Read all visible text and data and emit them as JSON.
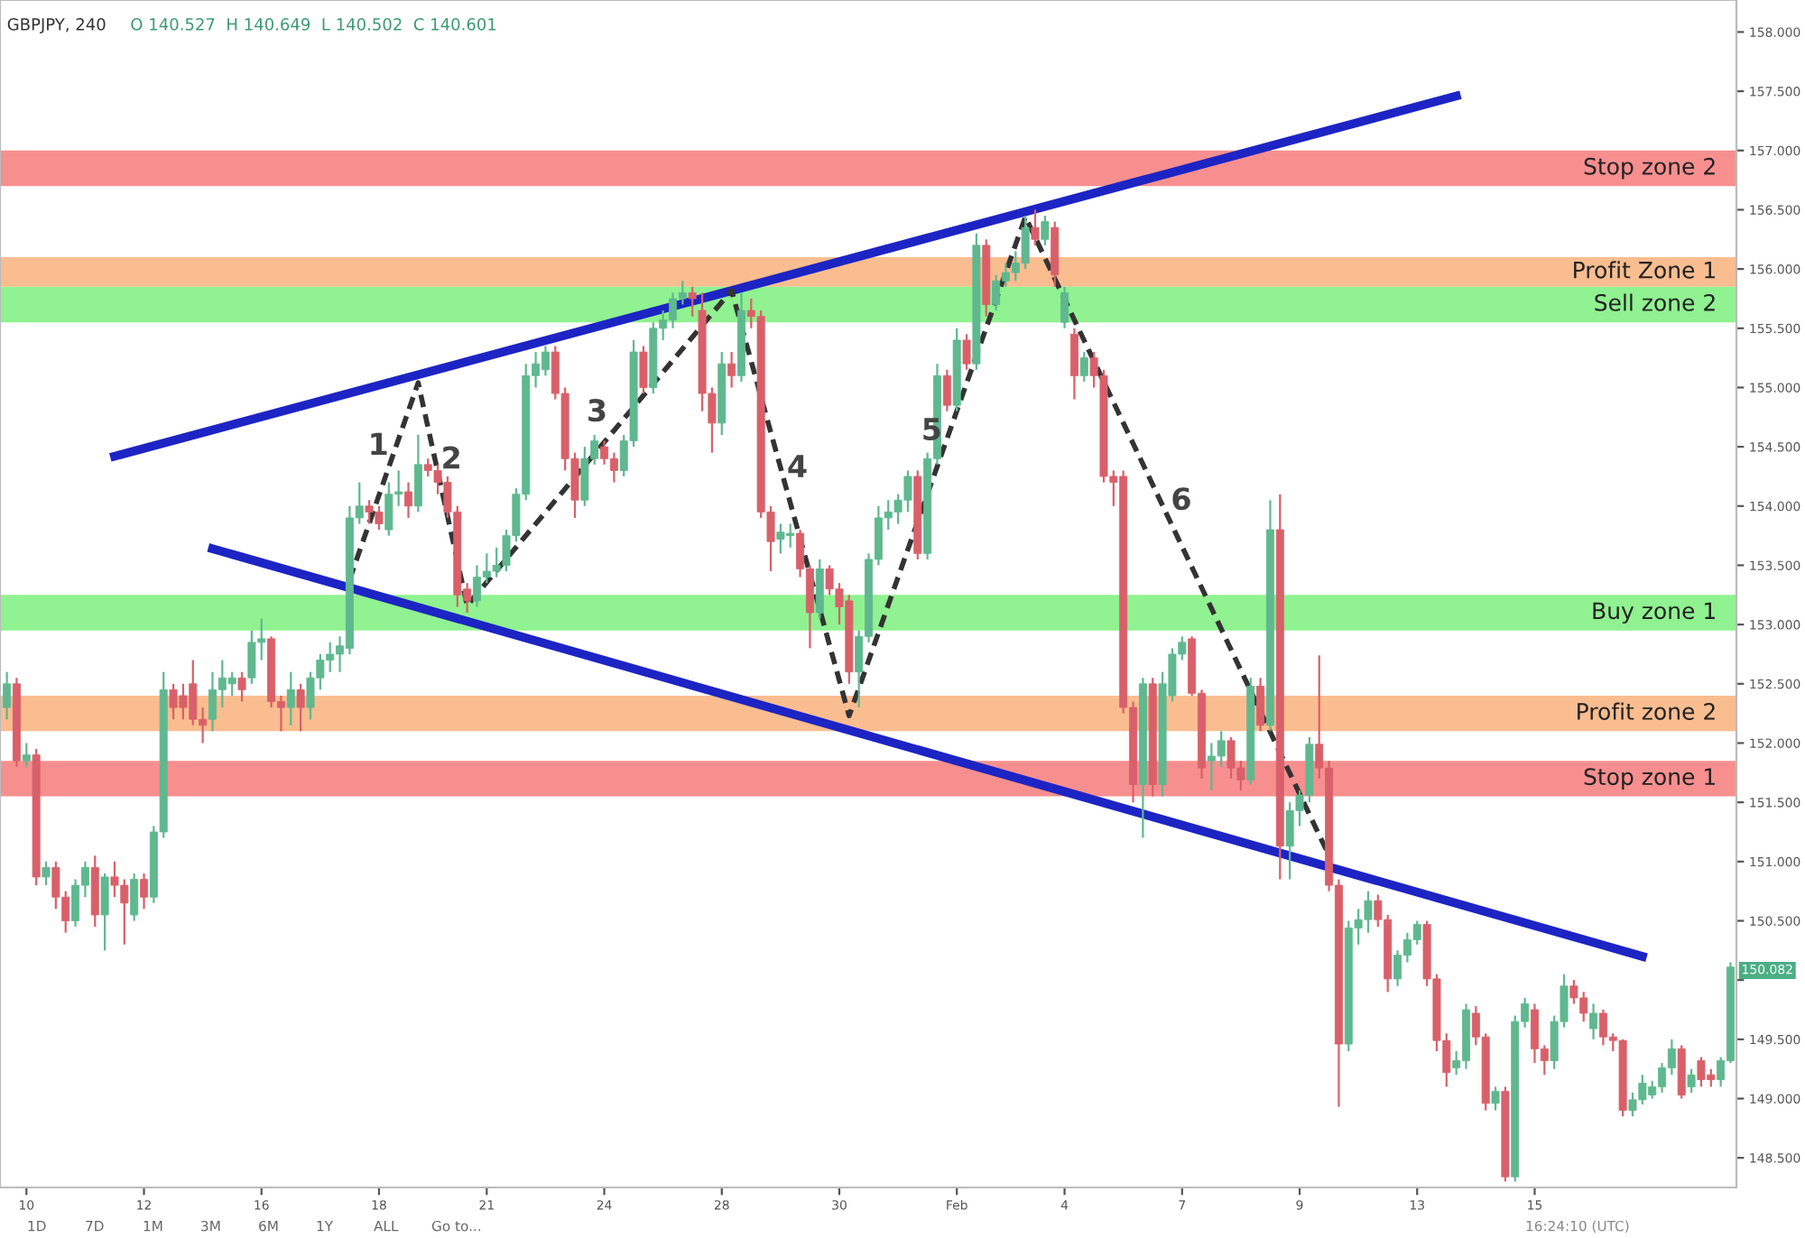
{
  "chart_data": {
    "type": "candlestick",
    "title": "GBPJPY, 240",
    "subtitle": "O 140.527  H 140.649  L 140.502  C 140.601",
    "categories": [
      null,
      null,
      "10",
      null,
      null,
      null,
      null,
      null,
      null,
      null,
      null,
      null,
      null,
      null,
      "12",
      null,
      null,
      null,
      null,
      null,
      null,
      null,
      null,
      null,
      null,
      null,
      "16",
      null,
      null,
      null,
      null,
      null,
      null,
      null,
      null,
      null,
      null,
      null,
      "18",
      null,
      null,
      null,
      null,
      null,
      null,
      null,
      null,
      null,
      null,
      "21",
      null,
      null,
      null,
      null,
      null,
      null,
      null,
      null,
      null,
      null,
      null,
      "24",
      null,
      null,
      null,
      null,
      null,
      null,
      null,
      null,
      null,
      null,
      null,
      "28",
      null,
      null,
      null,
      null,
      null,
      null,
      null,
      null,
      null,
      null,
      null,
      "30",
      null,
      null,
      null,
      null,
      null,
      null,
      null,
      null,
      null,
      null,
      null,
      "Feb",
      null,
      null,
      null,
      null,
      null,
      null,
      null,
      null,
      null,
      null,
      "4",
      null,
      null,
      null,
      null,
      null,
      null,
      null,
      null,
      null,
      null,
      null,
      "7",
      null,
      null,
      null,
      null,
      null,
      null,
      null,
      null,
      null,
      null,
      null,
      "9",
      null,
      null,
      null,
      null,
      null,
      null,
      null,
      null,
      null,
      null,
      null,
      "13",
      null,
      null,
      null,
      null,
      null,
      null,
      null,
      null,
      null,
      null,
      null,
      "15",
      null,
      null,
      null,
      null,
      null,
      null,
      null,
      null,
      null,
      null,
      null,
      null,
      null,
      null,
      null,
      null,
      null,
      null,
      null,
      null
    ],
    "ohlc": [
      [
        152.3,
        152.6,
        152.2,
        152.5
      ],
      [
        152.5,
        152.55,
        151.8,
        151.85
      ],
      [
        151.85,
        152.0,
        151.8,
        151.9
      ],
      [
        151.9,
        151.95,
        150.8,
        150.87
      ],
      [
        150.87,
        151.0,
        150.8,
        150.95
      ],
      [
        150.95,
        151.0,
        150.6,
        150.7
      ],
      [
        150.7,
        150.75,
        150.4,
        150.5
      ],
      [
        150.5,
        150.85,
        150.45,
        150.8
      ],
      [
        150.8,
        151.0,
        150.7,
        150.95
      ],
      [
        150.95,
        151.05,
        150.45,
        150.55
      ],
      [
        150.55,
        150.9,
        150.25,
        150.87
      ],
      [
        150.87,
        151.0,
        150.7,
        150.8
      ],
      [
        150.8,
        150.85,
        150.3,
        150.65
      ],
      [
        150.55,
        150.9,
        150.5,
        150.85
      ],
      [
        150.85,
        150.9,
        150.6,
        150.7
      ],
      [
        150.7,
        151.3,
        150.65,
        151.25
      ],
      [
        151.25,
        152.6,
        151.2,
        152.45
      ],
      [
        152.45,
        152.5,
        152.2,
        152.3
      ],
      [
        152.4,
        152.5,
        152.2,
        152.3
      ],
      [
        152.5,
        152.7,
        152.15,
        152.2
      ],
      [
        152.2,
        152.3,
        152.0,
        152.15
      ],
      [
        152.2,
        152.6,
        152.1,
        152.45
      ],
      [
        152.45,
        152.7,
        152.3,
        152.55
      ],
      [
        152.5,
        152.6,
        152.4,
        152.55
      ],
      [
        152.55,
        152.6,
        152.35,
        152.45
      ],
      [
        152.55,
        152.95,
        152.5,
        152.85
      ],
      [
        152.85,
        153.05,
        152.7,
        152.88
      ],
      [
        152.88,
        152.9,
        152.3,
        152.35
      ],
      [
        152.35,
        152.4,
        152.1,
        152.3
      ],
      [
        152.3,
        152.6,
        152.15,
        152.45
      ],
      [
        152.45,
        152.5,
        152.1,
        152.3
      ],
      [
        152.3,
        152.6,
        152.2,
        152.55
      ],
      [
        152.55,
        152.75,
        152.45,
        152.7
      ],
      [
        152.7,
        152.85,
        152.6,
        152.75
      ],
      [
        152.75,
        152.9,
        152.6,
        152.82
      ],
      [
        152.8,
        154.0,
        152.75,
        153.9
      ],
      [
        153.9,
        154.2,
        153.85,
        154.0
      ],
      [
        154.0,
        154.05,
        153.85,
        153.95
      ],
      [
        153.95,
        154.0,
        153.8,
        153.85
      ],
      [
        153.8,
        154.2,
        153.75,
        154.1
      ],
      [
        154.1,
        154.3,
        154.0,
        154.12
      ],
      [
        154.12,
        154.2,
        153.9,
        154.0
      ],
      [
        154.0,
        154.6,
        153.95,
        154.35
      ],
      [
        154.35,
        154.4,
        154.25,
        154.3
      ],
      [
        154.3,
        154.35,
        154.1,
        154.2
      ],
      [
        154.2,
        154.25,
        153.9,
        153.95
      ],
      [
        153.95,
        154.0,
        153.15,
        153.25
      ],
      [
        153.3,
        153.35,
        153.1,
        153.2
      ],
      [
        153.2,
        153.5,
        153.15,
        153.4
      ],
      [
        153.4,
        153.6,
        153.35,
        153.45
      ],
      [
        153.45,
        153.65,
        153.4,
        153.5
      ],
      [
        153.5,
        153.8,
        153.45,
        153.75
      ],
      [
        153.75,
        154.15,
        153.7,
        154.1
      ],
      [
        154.1,
        155.2,
        154.05,
        155.1
      ],
      [
        155.1,
        155.3,
        155.0,
        155.2
      ],
      [
        155.15,
        155.35,
        155.1,
        155.3
      ],
      [
        155.3,
        155.35,
        154.9,
        154.95
      ],
      [
        154.95,
        155.0,
        154.3,
        154.4
      ],
      [
        154.4,
        154.45,
        153.9,
        154.05
      ],
      [
        154.05,
        154.5,
        154.0,
        154.4
      ],
      [
        154.4,
        154.6,
        154.35,
        154.55
      ],
      [
        154.5,
        154.55,
        154.35,
        154.4
      ],
      [
        154.4,
        154.45,
        154.2,
        154.3
      ],
      [
        154.3,
        154.6,
        154.25,
        154.55
      ],
      [
        154.55,
        155.4,
        154.5,
        155.3
      ],
      [
        155.3,
        155.35,
        154.95,
        155.0
      ],
      [
        155.0,
        155.55,
        154.95,
        155.5
      ],
      [
        155.5,
        155.65,
        155.4,
        155.57
      ],
      [
        155.57,
        155.8,
        155.5,
        155.75
      ],
      [
        155.75,
        155.9,
        155.7,
        155.8
      ],
      [
        155.8,
        155.85,
        155.6,
        155.75
      ],
      [
        155.65,
        155.8,
        154.8,
        154.95
      ],
      [
        154.95,
        155.0,
        154.45,
        154.7
      ],
      [
        154.7,
        155.3,
        154.6,
        155.2
      ],
      [
        155.2,
        155.3,
        155.0,
        155.1
      ],
      [
        155.1,
        155.8,
        155.05,
        155.65
      ],
      [
        155.65,
        155.75,
        155.5,
        155.6
      ],
      [
        155.6,
        155.65,
        153.9,
        153.95
      ],
      [
        153.95,
        154.0,
        153.45,
        153.7
      ],
      [
        153.72,
        153.85,
        153.6,
        153.78
      ],
      [
        153.75,
        153.85,
        153.65,
        153.77
      ],
      [
        153.77,
        153.8,
        153.4,
        153.47
      ],
      [
        153.47,
        153.5,
        152.8,
        153.1
      ],
      [
        153.1,
        153.55,
        153.05,
        153.47
      ],
      [
        153.47,
        153.5,
        153.25,
        153.3
      ],
      [
        153.3,
        153.35,
        153.0,
        153.15
      ],
      [
        153.2,
        153.25,
        152.5,
        152.6
      ],
      [
        152.6,
        152.95,
        152.3,
        152.9
      ],
      [
        152.9,
        153.6,
        152.85,
        153.55
      ],
      [
        153.55,
        154.0,
        153.5,
        153.9
      ],
      [
        153.9,
        154.05,
        153.8,
        153.95
      ],
      [
        153.95,
        154.1,
        153.85,
        154.05
      ],
      [
        154.05,
        154.3,
        153.95,
        154.25
      ],
      [
        154.25,
        154.3,
        153.55,
        153.6
      ],
      [
        153.6,
        154.45,
        153.55,
        154.4
      ],
      [
        154.4,
        155.2,
        154.35,
        155.1
      ],
      [
        155.1,
        155.15,
        154.8,
        154.85
      ],
      [
        154.85,
        155.5,
        154.8,
        155.4
      ],
      [
        155.4,
        155.45,
        155.15,
        155.2
      ],
      [
        155.2,
        156.3,
        155.15,
        156.2
      ],
      [
        156.2,
        156.25,
        155.6,
        155.7
      ],
      [
        155.7,
        155.95,
        155.65,
        155.9
      ],
      [
        155.9,
        156.05,
        155.85,
        155.97
      ],
      [
        155.97,
        156.15,
        155.9,
        156.05
      ],
      [
        156.05,
        156.45,
        156.0,
        156.35
      ],
      [
        156.35,
        156.5,
        156.2,
        156.25
      ],
      [
        156.25,
        156.45,
        156.2,
        156.4
      ],
      [
        156.35,
        156.4,
        155.85,
        155.95
      ],
      [
        155.55,
        155.85,
        155.5,
        155.8
      ],
      [
        155.45,
        155.5,
        154.9,
        155.1
      ],
      [
        155.1,
        155.3,
        155.05,
        155.25
      ],
      [
        155.25,
        155.3,
        155.0,
        155.1
      ],
      [
        155.1,
        155.15,
        154.2,
        154.25
      ],
      [
        154.25,
        154.3,
        154.0,
        154.2
      ],
      [
        154.25,
        154.3,
        152.25,
        152.3
      ],
      [
        152.3,
        152.35,
        151.5,
        151.65
      ],
      [
        151.65,
        152.55,
        151.2,
        152.5
      ],
      [
        152.5,
        152.55,
        151.55,
        151.65
      ],
      [
        151.65,
        152.6,
        151.55,
        152.5
      ],
      [
        152.4,
        152.8,
        152.35,
        152.75
      ],
      [
        152.75,
        152.9,
        152.7,
        152.85
      ],
      [
        152.88,
        152.9,
        152.4,
        152.42
      ],
      [
        152.42,
        152.45,
        151.7,
        151.79
      ],
      [
        151.85,
        152.0,
        151.6,
        151.89
      ],
      [
        151.89,
        152.1,
        151.8,
        152.02
      ],
      [
        152.02,
        152.05,
        151.7,
        151.79
      ],
      [
        151.79,
        151.85,
        151.6,
        151.69
      ],
      [
        151.69,
        152.55,
        151.65,
        152.48
      ],
      [
        152.48,
        152.55,
        152.1,
        152.15
      ],
      [
        152.15,
        154.05,
        152.1,
        153.8
      ],
      [
        153.8,
        154.1,
        150.85,
        151.13
      ],
      [
        151.13,
        151.5,
        150.85,
        151.43
      ],
      [
        151.43,
        151.6,
        151.3,
        151.56
      ],
      [
        151.56,
        152.05,
        151.5,
        151.99
      ],
      [
        151.99,
        152.74,
        151.7,
        151.79
      ],
      [
        151.79,
        151.85,
        150.75,
        150.8
      ],
      [
        150.8,
        150.85,
        148.93,
        149.46
      ],
      [
        149.46,
        150.5,
        149.4,
        150.44
      ],
      [
        150.44,
        150.6,
        150.3,
        150.51
      ],
      [
        150.51,
        150.75,
        150.4,
        150.67
      ],
      [
        150.67,
        150.72,
        150.45,
        150.51
      ],
      [
        150.51,
        150.55,
        149.9,
        150.01
      ],
      [
        150.01,
        150.25,
        149.95,
        150.21
      ],
      [
        150.21,
        150.4,
        150.15,
        150.34
      ],
      [
        150.34,
        150.5,
        150.3,
        150.47
      ],
      [
        150.47,
        150.5,
        149.95,
        150.01
      ],
      [
        150.01,
        150.05,
        149.4,
        149.49
      ],
      [
        149.49,
        149.55,
        149.1,
        149.22
      ],
      [
        149.26,
        149.4,
        149.2,
        149.32
      ],
      [
        149.32,
        149.8,
        149.25,
        149.75
      ],
      [
        149.72,
        149.78,
        149.45,
        149.52
      ],
      [
        149.52,
        149.55,
        148.9,
        148.96
      ],
      [
        148.96,
        149.1,
        148.9,
        149.06
      ],
      [
        149.06,
        149.1,
        148.3,
        148.34
      ],
      [
        148.34,
        149.7,
        148.3,
        149.65
      ],
      [
        149.65,
        149.85,
        149.6,
        149.8
      ],
      [
        149.75,
        149.8,
        149.3,
        149.42
      ],
      [
        149.42,
        149.45,
        149.2,
        149.32
      ],
      [
        149.32,
        149.7,
        149.25,
        149.65
      ],
      [
        149.65,
        150.05,
        149.6,
        149.95
      ],
      [
        149.95,
        150.0,
        149.8,
        149.85
      ],
      [
        149.85,
        149.9,
        149.65,
        149.72
      ],
      [
        149.59,
        149.8,
        149.5,
        149.72
      ],
      [
        149.72,
        149.75,
        149.45,
        149.52
      ],
      [
        149.52,
        149.55,
        149.4,
        149.49
      ],
      [
        149.49,
        149.5,
        148.85,
        148.9
      ],
      [
        148.9,
        149.05,
        148.85,
        148.99
      ],
      [
        148.99,
        149.2,
        148.95,
        149.13
      ],
      [
        149.03,
        149.15,
        149.0,
        149.1
      ],
      [
        149.1,
        149.3,
        149.05,
        149.26
      ],
      [
        149.26,
        149.5,
        149.2,
        149.42
      ],
      [
        149.42,
        149.45,
        149.0,
        149.03
      ],
      [
        149.1,
        149.25,
        149.05,
        149.2
      ],
      [
        149.32,
        149.35,
        149.1,
        149.16
      ],
      [
        149.2,
        149.25,
        149.1,
        149.16
      ],
      [
        149.16,
        149.35,
        149.1,
        149.32
      ],
      [
        149.32,
        150.15,
        149.3,
        150.11
      ]
    ],
    "series": [
      {
        "type": "line",
        "color": "#1d24c4",
        "line_style": "solid",
        "values": [
          null,
          null,
          null,
          null,
          null,
          null,
          null,
          null,
          null,
          null,
          null,
          154.42,
          null,
          null,
          null,
          null,
          null,
          null,
          null,
          null,
          null,
          null,
          null,
          null,
          null,
          null,
          null,
          null,
          null,
          null,
          null,
          null,
          null,
          null,
          null,
          null,
          null,
          null,
          null,
          null,
          null,
          null,
          null,
          null,
          null,
          null,
          null,
          null,
          null,
          null,
          null,
          null,
          null,
          null,
          null,
          null,
          null,
          null,
          null,
          null,
          null,
          null,
          null,
          null,
          null,
          null,
          null,
          null,
          null,
          null,
          null,
          null,
          null,
          null,
          null,
          null,
          null,
          null,
          null,
          null,
          null,
          null,
          null,
          null,
          null,
          null,
          null,
          null,
          null,
          null,
          null,
          null,
          null,
          null,
          null,
          null,
          null,
          null,
          null,
          null,
          null,
          null,
          null,
          null,
          null,
          null,
          null,
          null,
          null,
          null,
          null,
          null,
          null,
          null,
          null,
          null,
          null,
          null,
          null,
          null,
          null,
          null,
          null,
          null,
          null,
          null,
          null,
          null,
          null,
          null,
          null,
          null,
          null,
          null,
          null,
          null,
          null,
          null,
          null,
          null,
          null,
          null,
          null,
          null,
          null,
          null,
          null,
          null,
          157.46,
          null,
          null,
          null,
          null,
          null,
          null,
          null,
          null,
          null,
          null,
          null,
          null,
          null,
          null,
          null,
          null,
          null,
          null,
          null,
          null,
          null,
          null,
          null,
          null,
          null,
          null,
          null,
          null
        ]
      },
      {
        "type": "line",
        "color": "#1d24c4",
        "line_style": "solid",
        "values": [
          null,
          null,
          null,
          null,
          null,
          null,
          null,
          null,
          null,
          null,
          null,
          null,
          null,
          null,
          null,
          null,
          null,
          null,
          null,
          null,
          null,
          153.64,
          null,
          null,
          null,
          null,
          null,
          null,
          null,
          null,
          null,
          null,
          null,
          null,
          null,
          null,
          null,
          null,
          null,
          null,
          null,
          null,
          null,
          null,
          null,
          null,
          null,
          null,
          null,
          null,
          null,
          null,
          null,
          null,
          null,
          null,
          null,
          null,
          null,
          null,
          null,
          null,
          null,
          null,
          null,
          null,
          null,
          null,
          null,
          null,
          null,
          null,
          null,
          null,
          null,
          null,
          null,
          null,
          null,
          null,
          null,
          null,
          null,
          null,
          null,
          null,
          null,
          null,
          null,
          null,
          null,
          null,
          null,
          null,
          null,
          null,
          null,
          null,
          null,
          null,
          null,
          null,
          null,
          null,
          null,
          null,
          null,
          null,
          null,
          null,
          null,
          null,
          null,
          null,
          null,
          null,
          null,
          null,
          null,
          null,
          null,
          null,
          null,
          null,
          null,
          null,
          null,
          null,
          null,
          null,
          null,
          null,
          null,
          null,
          null,
          null,
          null,
          null,
          null,
          null,
          null,
          null,
          null,
          null,
          null,
          null,
          null,
          null,
          null,
          null,
          null,
          null,
          null,
          null,
          null,
          null,
          null,
          null,
          null,
          null,
          null,
          null,
          null,
          null,
          null,
          null,
          null,
          150.2,
          null,
          null,
          null,
          null,
          null,
          null,
          null,
          null,
          null
        ]
      },
      {
        "type": "line",
        "color": "#333333",
        "line_style": "dashed",
        "values": [
          null,
          null,
          null,
          null,
          null,
          null,
          null,
          null,
          null,
          null,
          null,
          null,
          null,
          null,
          null,
          null,
          null,
          null,
          null,
          null,
          null,
          null,
          null,
          null,
          null,
          null,
          null,
          null,
          null,
          null,
          null,
          null,
          null,
          null,
          null,
          153.38,
          null,
          null,
          null,
          null,
          null,
          null,
          155.04,
          null,
          null,
          null,
          null,
          153.16,
          null,
          null,
          null,
          null,
          null,
          null,
          null,
          null,
          null,
          null,
          null,
          null,
          null,
          null,
          null,
          null,
          null,
          null,
          null,
          null,
          null,
          null,
          null,
          null,
          null,
          null,
          155.82,
          null,
          null,
          null,
          null,
          null,
          null,
          null,
          null,
          null,
          null,
          null,
          152.23,
          null,
          null,
          null,
          null,
          null,
          null,
          null,
          null,
          null,
          null,
          null,
          null,
          null,
          null,
          null,
          null,
          null,
          156.44,
          null,
          null,
          null,
          null,
          null,
          null,
          null,
          null,
          null,
          null,
          null,
          null,
          null,
          null,
          null,
          null,
          null,
          null,
          null,
          null,
          null,
          null,
          null,
          null,
          null,
          null,
          null,
          null,
          null,
          null,
          151.05,
          null,
          null,
          null,
          null,
          null,
          null,
          null,
          null,
          null,
          null,
          null,
          null,
          null,
          null,
          null,
          null,
          null,
          null,
          null,
          null,
          null,
          null,
          null,
          null,
          null,
          null,
          null,
          null,
          null,
          null,
          null,
          null,
          null,
          null,
          null,
          null,
          null,
          null,
          null,
          null,
          null
        ]
      }
    ],
    "bands": [
      {
        "axis": "y",
        "from": 156.7,
        "to": 157.0,
        "label": "Stop zone 2",
        "color": "#f77b7b"
      },
      {
        "axis": "y",
        "from": 155.85,
        "to": 156.1,
        "label": "Profit Zone 1",
        "color": "#f9b27d"
      },
      {
        "axis": "y",
        "from": 155.55,
        "to": 155.85,
        "label": "Sell zone 2",
        "color": "#7cf07c"
      },
      {
        "axis": "y",
        "from": 152.95,
        "to": 153.25,
        "label": "Buy zone 1",
        "color": "#7cf07c"
      },
      {
        "axis": "y",
        "from": 152.1,
        "to": 152.4,
        "label": "Profit zone 2",
        "color": "#f9b27d"
      },
      {
        "axis": "y",
        "from": 151.55,
        "to": 151.85,
        "label": "Stop zone 1",
        "color": "#f77b7b"
      }
    ],
    "annotations": [
      "1",
      "2",
      "3",
      "4",
      "5",
      "6",
      {
        "text": "150.082",
        "y": 150.082
      },
      "1D",
      "7D",
      "1M",
      "3M",
      "6M",
      "1Y",
      "ALL",
      "Go to...",
      "16:24:10 (UTC)"
    ],
    "ylim": [
      148.25,
      158.27
    ],
    "yticks": [
      {
        "value": 148.5,
        "label": "148.500"
      },
      {
        "value": 149,
        "label": "149.000"
      },
      {
        "value": 149.5,
        "label": "149.500"
      },
      {
        "value": 150,
        "label": null
      },
      {
        "value": 150.5,
        "label": "150.500"
      },
      {
        "value": 151,
        "label": "151.000"
      },
      {
        "value": 151.5,
        "label": "151.500"
      },
      {
        "value": 152,
        "label": "152.000"
      },
      {
        "value": 152.5,
        "label": "152.500"
      },
      {
        "value": 153,
        "label": "153.000"
      },
      {
        "value": 153.5,
        "label": "153.500"
      },
      {
        "value": 154,
        "label": "154.000"
      },
      {
        "value": 154.5,
        "label": "154.500"
      },
      {
        "value": 155,
        "label": "155.000"
      },
      {
        "value": 155.5,
        "label": "155.500"
      },
      {
        "value": 156,
        "label": "156.000"
      },
      {
        "value": 156.5,
        "label": "156.500"
      },
      {
        "value": 157,
        "label": "157.000"
      },
      {
        "value": 157.5,
        "label": "157.500"
      },
      {
        "value": 158,
        "label": "158.000"
      }
    ],
    "grid": false,
    "legend": false
  }
}
